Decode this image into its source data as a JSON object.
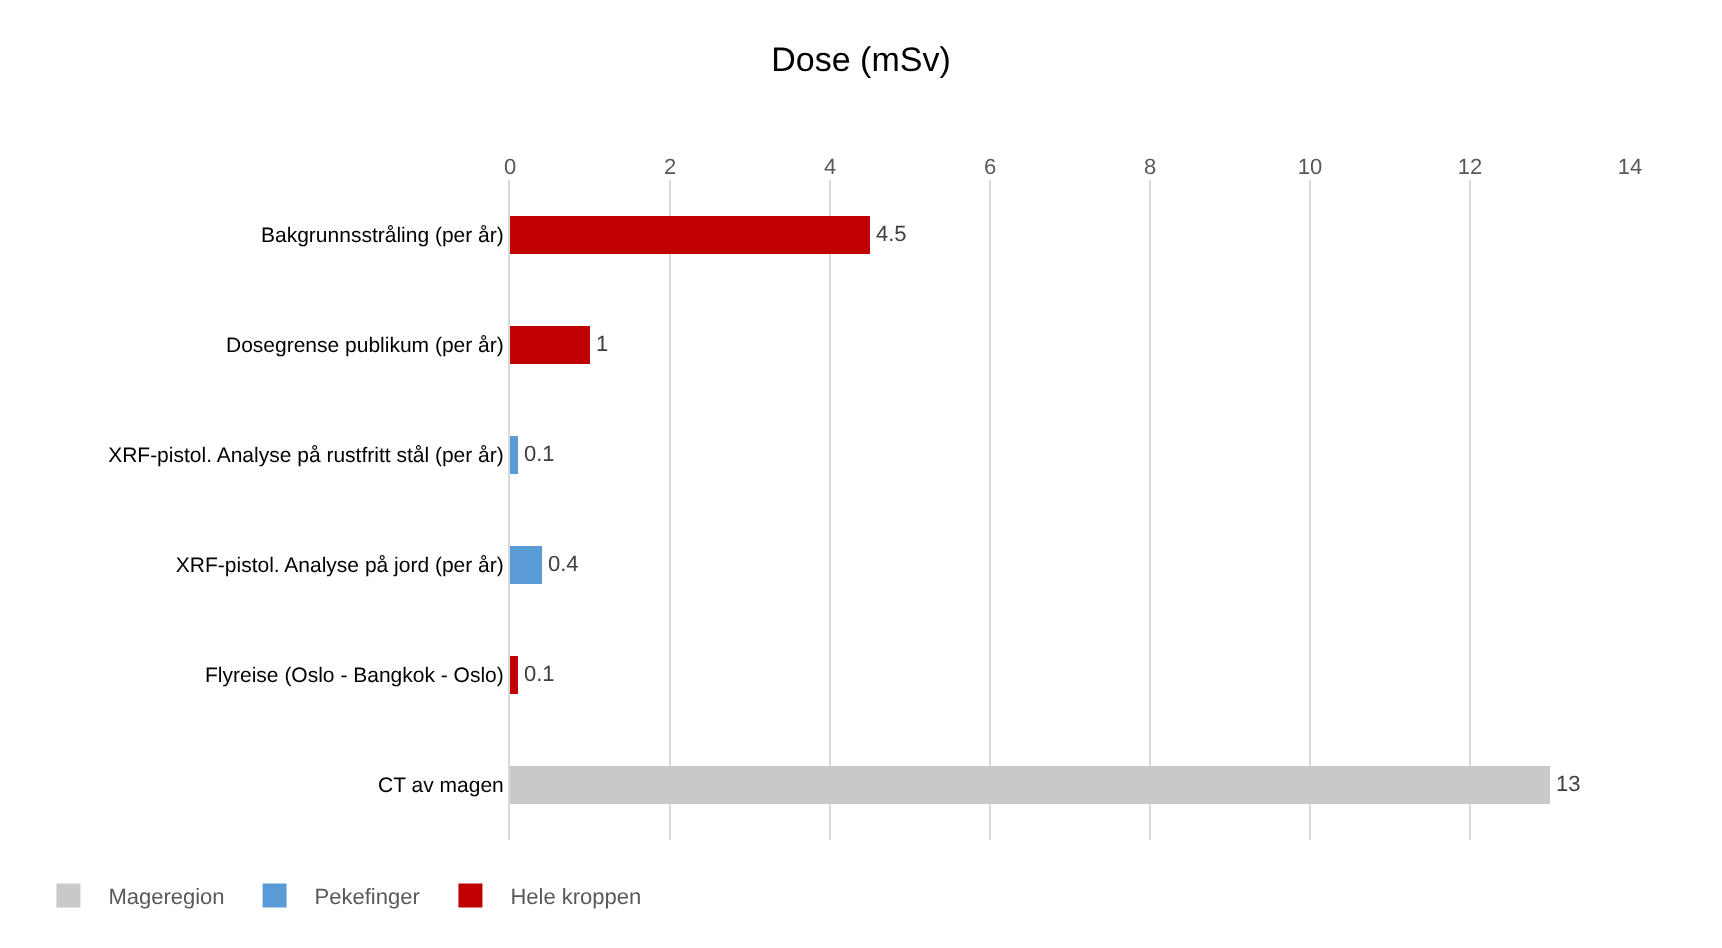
{
  "chart_data": {
    "type": "bar",
    "orientation": "horizontal",
    "stacked": true,
    "title": "Dose (mSv)",
    "categories": [
      "Bakgrunnsstråling (per år)",
      "Dosegrense publikum (per år)",
      "XRF-pistol. Analyse på rustfritt stål (per år)",
      "XRF-pistol. Analyse på jord (per år)",
      "Flyreise (Oslo - Bangkok - Oslo)",
      "CT av magen"
    ],
    "series": [
      {
        "name": "Hele kroppen",
        "color": "#c00000",
        "values": [
          4.5,
          1,
          null,
          null,
          0.1,
          null
        ]
      },
      {
        "name": "Pekefinger",
        "color": "#5b9bd5",
        "values": [
          null,
          null,
          0.1,
          0.4,
          null,
          null
        ]
      },
      {
        "name": "Mageregion",
        "color": "#c9c9c9",
        "values": [
          null,
          null,
          null,
          null,
          null,
          13
        ]
      }
    ],
    "xlim": [
      0,
      14
    ],
    "xticks": [
      0,
      2,
      4,
      6,
      8,
      10,
      12,
      14
    ],
    "grid": "x",
    "legend": "bottom left",
    "data_labels": true
  }
}
